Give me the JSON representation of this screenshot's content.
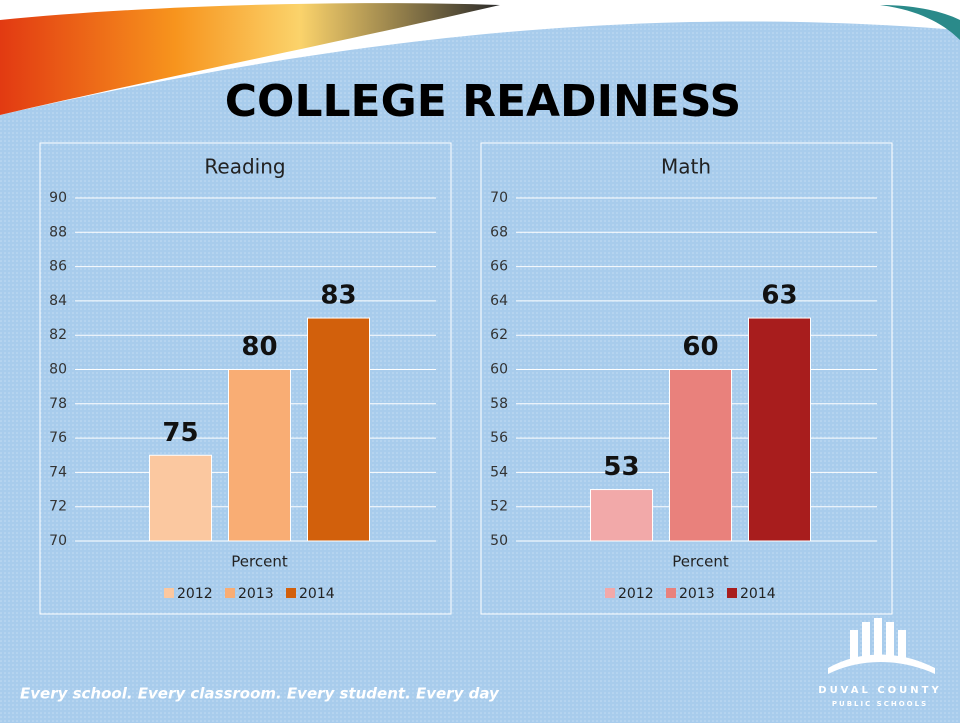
{
  "slide": {
    "title": "COLLEGE READINESS",
    "footer": "Every school. Every classroom. Every student. Every day",
    "logo_line1": "DUVAL COUNTY",
    "logo_line2": "PUBLIC SCHOOLS"
  },
  "chart_data": [
    {
      "type": "bar",
      "title": "Reading",
      "categories": [
        "Percent"
      ],
      "series": [
        {
          "name": "2012",
          "color": "#fbc8a0",
          "values": [
            75
          ]
        },
        {
          "name": "2013",
          "color": "#f9ad74",
          "values": [
            80
          ]
        },
        {
          "name": "2014",
          "color": "#d2600c",
          "values": [
            83
          ]
        }
      ],
      "ylim": [
        70,
        90
      ],
      "yticks": [
        70,
        72,
        74,
        76,
        78,
        80,
        82,
        84,
        86,
        88,
        90
      ],
      "grid": true,
      "legend": "bottom"
    },
    {
      "type": "bar",
      "title": "Math",
      "categories": [
        "Percent"
      ],
      "series": [
        {
          "name": "2012",
          "color": "#f2a9a9",
          "values": [
            53
          ]
        },
        {
          "name": "2013",
          "color": "#e9817c",
          "values": [
            60
          ]
        },
        {
          "name": "2014",
          "color": "#a81d1d",
          "values": [
            63
          ]
        }
      ],
      "ylim": [
        50,
        70
      ],
      "yticks": [
        50,
        52,
        54,
        56,
        58,
        60,
        62,
        64,
        66,
        68,
        70
      ],
      "grid": true,
      "legend": "bottom"
    }
  ]
}
